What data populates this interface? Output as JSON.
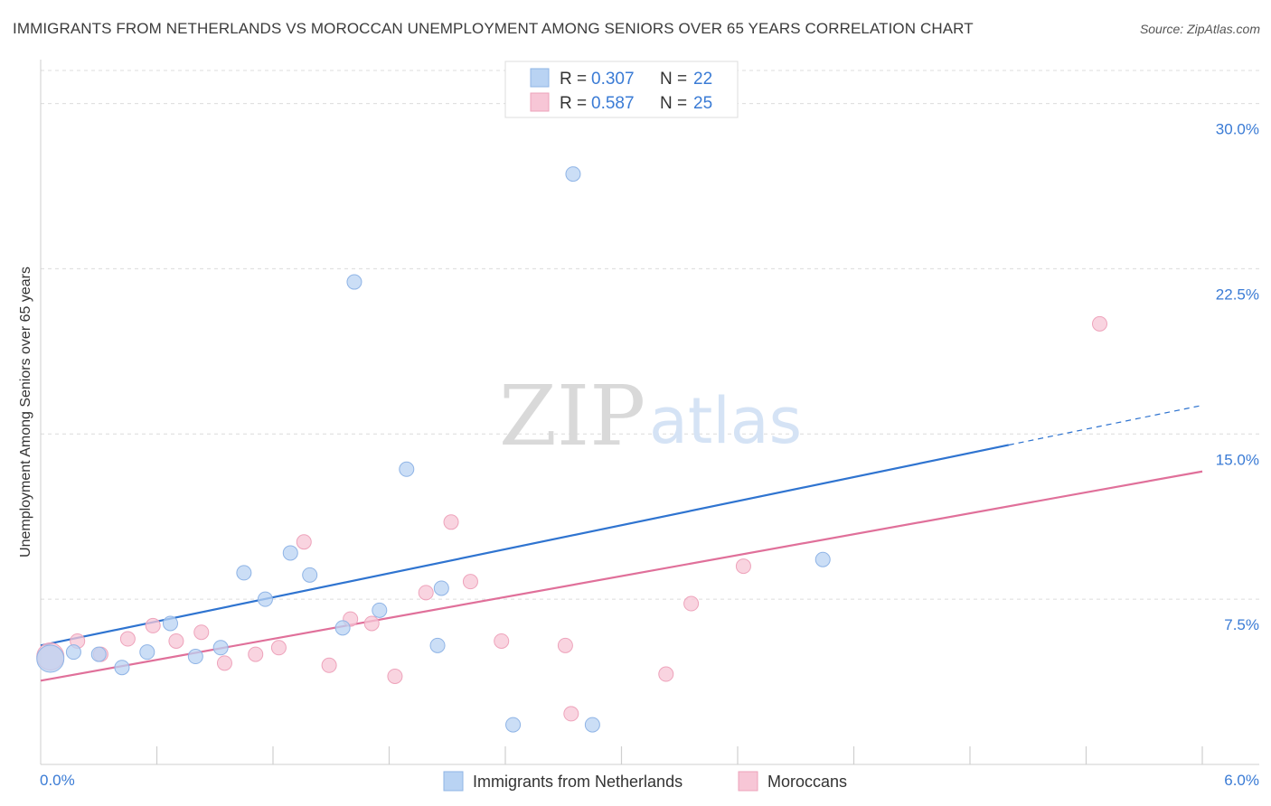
{
  "header": {
    "title": "IMMIGRANTS FROM NETHERLANDS VS MOROCCAN UNEMPLOYMENT AMONG SENIORS OVER 65 YEARS CORRELATION CHART",
    "source": "Source: ZipAtlas.com"
  },
  "watermark": {
    "zip": "ZIP",
    "atlas": "atlas"
  },
  "colors": {
    "blue_fill": "#b9d3f3",
    "blue_stroke": "#8fb4e6",
    "blue_line": "#2f74d0",
    "pink_fill": "#f7c6d6",
    "pink_stroke": "#eea3bb",
    "pink_line": "#e0709a",
    "grid": "#dcdcdc",
    "axis_label": "#3a7bd5"
  },
  "legend": {
    "rows": [
      {
        "r_label": "R =",
        "r_value": "0.307",
        "n_label": "N =",
        "n_value": "22"
      },
      {
        "r_label": "R =",
        "r_value": "0.587",
        "n_label": "N =",
        "n_value": "25"
      }
    ]
  },
  "chart_data": {
    "type": "scatter",
    "title": "IMMIGRANTS FROM NETHERLANDS VS MOROCCAN UNEMPLOYMENT AMONG SENIORS OVER 65 YEARS CORRELATION CHART",
    "xlabel": "",
    "ylabel": "Unemployment Among Seniors over 65 years",
    "xlim": [
      0,
      6
    ],
    "ylim": [
      0,
      31.5
    ],
    "x_tick_labels": [
      "0.0%",
      "6.0%"
    ],
    "y_ticks": [
      7.5,
      15.0,
      22.5,
      30.0
    ],
    "y_tick_labels": [
      "7.5%",
      "15.0%",
      "22.5%",
      "30.0%"
    ],
    "grid": true,
    "series": [
      {
        "name": "Immigrants from Netherlands",
        "color": "#b9d3f3",
        "points": [
          {
            "x": 0.05,
            "y": 4.8,
            "big": true
          },
          {
            "x": 0.17,
            "y": 5.1
          },
          {
            "x": 0.3,
            "y": 5.0
          },
          {
            "x": 0.42,
            "y": 4.4
          },
          {
            "x": 0.55,
            "y": 5.1
          },
          {
            "x": 0.67,
            "y": 6.4
          },
          {
            "x": 0.8,
            "y": 4.9
          },
          {
            "x": 0.93,
            "y": 5.3
          },
          {
            "x": 1.05,
            "y": 8.7
          },
          {
            "x": 1.16,
            "y": 7.5
          },
          {
            "x": 1.29,
            "y": 9.6
          },
          {
            "x": 1.39,
            "y": 8.6
          },
          {
            "x": 1.56,
            "y": 6.2
          },
          {
            "x": 1.62,
            "y": 21.9
          },
          {
            "x": 1.75,
            "y": 7.0
          },
          {
            "x": 1.89,
            "y": 13.4
          },
          {
            "x": 2.05,
            "y": 5.4
          },
          {
            "x": 2.07,
            "y": 8.0
          },
          {
            "x": 2.44,
            "y": 1.8
          },
          {
            "x": 2.75,
            "y": 26.8
          },
          {
            "x": 2.85,
            "y": 1.8
          },
          {
            "x": 4.04,
            "y": 9.3
          }
        ],
        "trend": {
          "x0": 0,
          "y0": 5.4,
          "x1": 5.0,
          "y1": 14.5,
          "dashed_to": {
            "x": 6.0,
            "y": 16.3
          }
        }
      },
      {
        "name": "Moroccans",
        "color": "#f7c6d6",
        "points": [
          {
            "x": 0.05,
            "y": 4.9,
            "big": true
          },
          {
            "x": 0.19,
            "y": 5.6
          },
          {
            "x": 0.31,
            "y": 5.0
          },
          {
            "x": 0.45,
            "y": 5.7
          },
          {
            "x": 0.58,
            "y": 6.3
          },
          {
            "x": 0.7,
            "y": 5.6
          },
          {
            "x": 0.83,
            "y": 6.0
          },
          {
            "x": 0.95,
            "y": 4.6
          },
          {
            "x": 1.11,
            "y": 5.0
          },
          {
            "x": 1.23,
            "y": 5.3
          },
          {
            "x": 1.36,
            "y": 10.1
          },
          {
            "x": 1.49,
            "y": 4.5
          },
          {
            "x": 1.6,
            "y": 6.6
          },
          {
            "x": 1.71,
            "y": 6.4
          },
          {
            "x": 1.83,
            "y": 4.0
          },
          {
            "x": 1.99,
            "y": 7.8
          },
          {
            "x": 2.12,
            "y": 11.0
          },
          {
            "x": 2.22,
            "y": 8.3
          },
          {
            "x": 2.38,
            "y": 5.6
          },
          {
            "x": 2.71,
            "y": 5.4
          },
          {
            "x": 2.74,
            "y": 2.3
          },
          {
            "x": 3.23,
            "y": 4.1
          },
          {
            "x": 3.36,
            "y": 7.3
          },
          {
            "x": 3.63,
            "y": 9.0
          },
          {
            "x": 5.47,
            "y": 20.0
          }
        ],
        "trend": {
          "x0": 0,
          "y0": 3.8,
          "x1": 6.0,
          "y1": 13.3
        }
      }
    ]
  }
}
